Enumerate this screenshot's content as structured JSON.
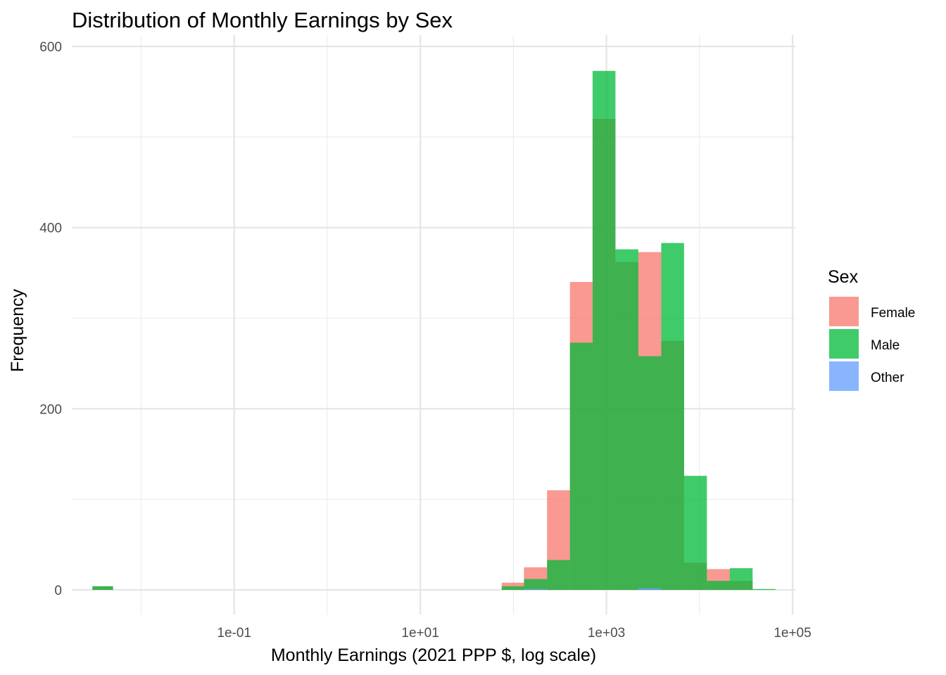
{
  "chart_data": {
    "type": "bar",
    "title": "Distribution of Monthly Earnings by Sex",
    "xlabel": "Monthly Earnings (2021 PPP $, log scale)",
    "ylabel": "Frequency",
    "x_scale": "log10",
    "xlim": [
      0.0018,
      100000
    ],
    "ylim": [
      0,
      600
    ],
    "x_ticks": [
      {
        "value": 0.1,
        "label": "1e-01"
      },
      {
        "value": 10,
        "label": "1e+01"
      },
      {
        "value": 1000,
        "label": "1e+03"
      },
      {
        "value": 100000,
        "label": "1e+05"
      }
    ],
    "x_minor_ticks": [
      0.01,
      1,
      100,
      10000
    ],
    "y_ticks": [
      {
        "value": 0,
        "label": "0"
      },
      {
        "value": 200,
        "label": "200"
      },
      {
        "value": 400,
        "label": "400"
      },
      {
        "value": 600,
        "label": "600"
      }
    ],
    "y_minor_ticks": [
      100,
      300,
      500
    ],
    "grid": true,
    "legend": {
      "title": "Sex",
      "position": "right"
    },
    "series": [
      {
        "name": "Female",
        "color": "#F8766D",
        "bins": [
          {
            "x0": 0.003,
            "x1": 0.005,
            "count": 4
          },
          {
            "x0": 75,
            "x1": 130,
            "count": 8
          },
          {
            "x0": 130,
            "x1": 230,
            "count": 25
          },
          {
            "x0": 230,
            "x1": 405,
            "count": 110
          },
          {
            "x0": 405,
            "x1": 710,
            "count": 340
          },
          {
            "x0": 710,
            "x1": 1250,
            "count": 520
          },
          {
            "x0": 1250,
            "x1": 2200,
            "count": 362
          },
          {
            "x0": 2200,
            "x1": 3880,
            "count": 373
          },
          {
            "x0": 3880,
            "x1": 6830,
            "count": 275
          },
          {
            "x0": 6830,
            "x1": 12000,
            "count": 30
          },
          {
            "x0": 12000,
            "x1": 21200,
            "count": 23
          },
          {
            "x0": 21200,
            "x1": 37300,
            "count": 10
          }
        ]
      },
      {
        "name": "Male",
        "color": "#00BA38",
        "bins": [
          {
            "x0": 0.003,
            "x1": 0.005,
            "count": 4
          },
          {
            "x0": 75,
            "x1": 130,
            "count": 4
          },
          {
            "x0": 130,
            "x1": 230,
            "count": 12
          },
          {
            "x0": 230,
            "x1": 405,
            "count": 33
          },
          {
            "x0": 405,
            "x1": 710,
            "count": 273
          },
          {
            "x0": 710,
            "x1": 1250,
            "count": 573
          },
          {
            "x0": 1250,
            "x1": 2200,
            "count": 376
          },
          {
            "x0": 2200,
            "x1": 3880,
            "count": 258
          },
          {
            "x0": 3880,
            "x1": 6830,
            "count": 383
          },
          {
            "x0": 6830,
            "x1": 12000,
            "count": 126
          },
          {
            "x0": 12000,
            "x1": 21200,
            "count": 10
          },
          {
            "x0": 21200,
            "x1": 37300,
            "count": 24
          },
          {
            "x0": 37300,
            "x1": 65700,
            "count": 1
          }
        ]
      },
      {
        "name": "Other",
        "color": "#619CFF",
        "bins": [
          {
            "x0": 130,
            "x1": 230,
            "count": 1
          },
          {
            "x0": 2200,
            "x1": 3880,
            "count": 2
          }
        ]
      }
    ]
  }
}
